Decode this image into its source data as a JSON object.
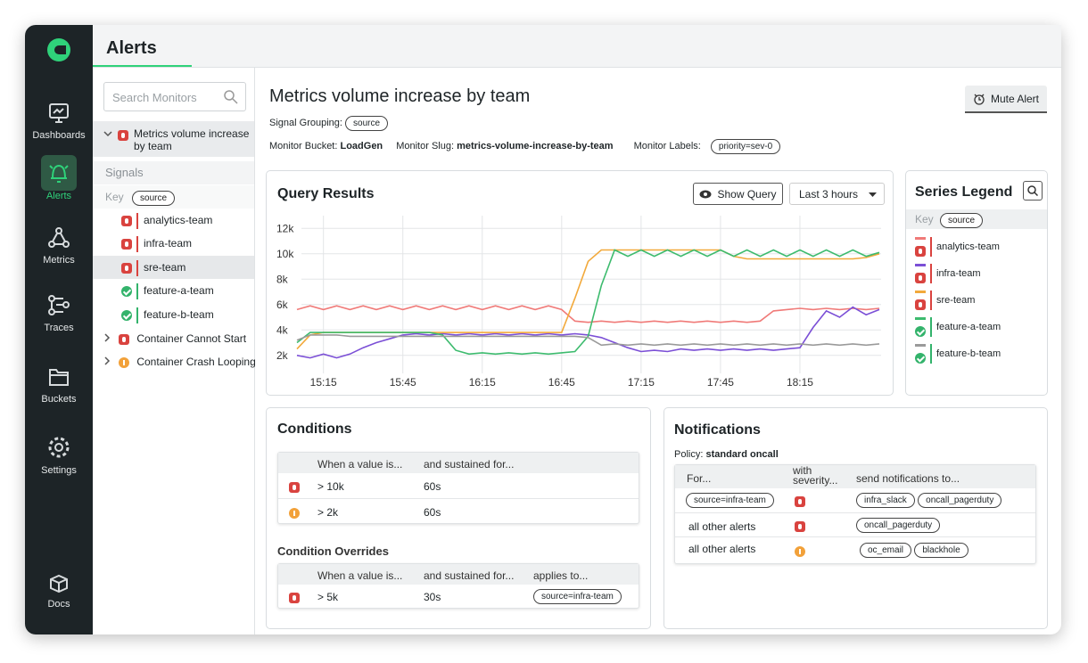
{
  "sidebar": {
    "items": [
      "Dashboards",
      "Alerts",
      "Metrics",
      "Traces",
      "Buckets",
      "Settings",
      "Docs"
    ]
  },
  "header": {
    "title": "Alerts"
  },
  "monitor_list": {
    "search_placeholder": "Search Monitors",
    "monitors": [
      {
        "name": "Metrics volume increase by team",
        "signals_title": "Signals",
        "key_label": "Key",
        "key": "source",
        "signals": [
          "analytics-team",
          "infra-team",
          "sre-team",
          "feature-a-team",
          "feature-b-team"
        ]
      },
      {
        "name": "Container Cannot Start"
      },
      {
        "name": "Container Crash Looping"
      }
    ]
  },
  "monitor": {
    "title": "Metrics volume increase by team",
    "signal_grouping_label": "Signal Grouping:",
    "signal_grouping": "source",
    "bucket_label": "Monitor Bucket:",
    "bucket": "LoadGen",
    "slug_label": "Monitor Slug:",
    "slug": "metrics-volume-increase-by-team",
    "labels_label": "Monitor Labels:",
    "labels": "priority=sev-0",
    "mute_button": "Mute Alert"
  },
  "query_results": {
    "title": "Query Results",
    "show_query": "Show Query",
    "range": "Last 3 hours"
  },
  "chart_data": {
    "type": "line",
    "x": [
      "15:05",
      "15:10",
      "15:15",
      "15:20",
      "15:25",
      "15:30",
      "15:35",
      "15:40",
      "15:45",
      "15:50",
      "15:55",
      "16:00",
      "16:05",
      "16:10",
      "16:15",
      "16:20",
      "16:25",
      "16:30",
      "16:35",
      "16:40",
      "16:45",
      "16:50",
      "16:55",
      "17:00",
      "17:05",
      "17:10",
      "17:15",
      "17:20",
      "17:25",
      "17:30",
      "17:35",
      "17:40",
      "17:45",
      "17:50",
      "17:55",
      "18:00",
      "18:05",
      "18:10",
      "18:15",
      "18:20",
      "18:25",
      "18:30",
      "18:35",
      "18:40",
      "18:45"
    ],
    "xticks": [
      "15:15",
      "15:45",
      "16:15",
      "16:45",
      "17:15",
      "17:45",
      "18:15"
    ],
    "ylim": [
      1000,
      13000
    ],
    "yticks": [
      {
        "value": 2000,
        "label": "2k"
      },
      {
        "value": 4000,
        "label": "4k"
      },
      {
        "value": 6000,
        "label": "6k"
      },
      {
        "value": 8000,
        "label": "8k"
      },
      {
        "value": 10000,
        "label": "10k"
      },
      {
        "value": 12000,
        "label": "12k"
      }
    ],
    "grid": true,
    "series": [
      {
        "name": "analytics-team",
        "color": "#f07a78",
        "values": [
          5600,
          5900,
          5600,
          5900,
          5600,
          5900,
          5600,
          5900,
          5600,
          5900,
          5600,
          5900,
          5600,
          5900,
          5600,
          5900,
          5600,
          5900,
          5600,
          5900,
          5600,
          4700,
          4600,
          4700,
          4600,
          4700,
          4600,
          4700,
          4600,
          4700,
          4600,
          4700,
          4600,
          4700,
          4600,
          4700,
          5500,
          5600,
          5700,
          5600,
          5700,
          5600,
          5700,
          5600,
          5700
        ]
      },
      {
        "name": "infra-team",
        "color": "#7b4fd6",
        "values": [
          2000,
          1800,
          2100,
          1800,
          2100,
          2600,
          3000,
          3300,
          3600,
          3700,
          3600,
          3700,
          3600,
          3700,
          3600,
          3700,
          3600,
          3700,
          3600,
          3700,
          3600,
          3700,
          3600,
          3400,
          3000,
          2600,
          2300,
          2400,
          2300,
          2500,
          2400,
          2500,
          2400,
          2500,
          2400,
          2500,
          2400,
          2500,
          2600,
          4200,
          5500,
          5000,
          5800,
          5200,
          5600
        ]
      },
      {
        "name": "sre-team",
        "color": "#f2a93b",
        "values": [
          2500,
          3600,
          3800,
          3800,
          3800,
          3800,
          3800,
          3800,
          3800,
          3800,
          3800,
          3800,
          3800,
          3800,
          3800,
          3800,
          3800,
          3800,
          3800,
          3800,
          3800,
          6500,
          9400,
          10300,
          10300,
          10300,
          10300,
          10300,
          10300,
          10300,
          10300,
          10300,
          10300,
          9800,
          9600,
          9600,
          9600,
          9600,
          9600,
          9600,
          9600,
          9600,
          9600,
          9700,
          10000
        ]
      },
      {
        "name": "feature-a-team",
        "color": "#3dbb6e",
        "values": [
          3000,
          3800,
          3800,
          3800,
          3800,
          3800,
          3800,
          3800,
          3800,
          3800,
          3800,
          3600,
          2400,
          2100,
          2200,
          2100,
          2200,
          2100,
          2200,
          2100,
          2200,
          2300,
          3500,
          7500,
          10300,
          9800,
          10300,
          9800,
          10300,
          9800,
          10300,
          9800,
          10300,
          9800,
          10300,
          9800,
          10300,
          9800,
          10300,
          9800,
          10300,
          9800,
          10300,
          9800,
          10100
        ]
      },
      {
        "name": "feature-b-team",
        "color": "#9a9a9a",
        "values": [
          3200,
          3600,
          3600,
          3600,
          3500,
          3500,
          3500,
          3500,
          3500,
          3500,
          3500,
          3500,
          3500,
          3500,
          3500,
          3500,
          3500,
          3500,
          3500,
          3500,
          3500,
          3500,
          3400,
          2800,
          2900,
          2800,
          2900,
          2800,
          2900,
          2800,
          2900,
          2800,
          2900,
          2800,
          2900,
          2800,
          2900,
          2800,
          2900,
          2800,
          2900,
          2800,
          2900,
          2800,
          2900
        ]
      }
    ]
  },
  "series_legend": {
    "title": "Series Legend",
    "key_label": "Key",
    "key": "source"
  },
  "conditions": {
    "title": "Conditions",
    "columns": [
      "When a value is...",
      "and sustained for..."
    ],
    "rows": [
      [
        "> 10k",
        "60s"
      ],
      [
        "> 2k",
        "60s"
      ]
    ],
    "overrides_title": "Condition Overrides",
    "override_columns": [
      "When a value is...",
      "and sustained for...",
      "applies to..."
    ],
    "override_rows": [
      [
        "> 5k",
        "30s",
        "source=infra-team"
      ]
    ]
  },
  "notifications": {
    "title": "Notifications",
    "policy_label": "Policy:",
    "policy": "standard oncall",
    "columns": [
      "For...",
      "with severity...",
      "send notifications to..."
    ],
    "rows": [
      {
        "for": "source=infra-team",
        "targets": [
          "infra_slack",
          "oncall_pagerduty"
        ]
      },
      {
        "for": "all other alerts",
        "targets": [
          "oncall_pagerduty"
        ]
      },
      {
        "for": "all other alerts",
        "targets": [
          "oc_email",
          "blackhole"
        ]
      }
    ]
  }
}
